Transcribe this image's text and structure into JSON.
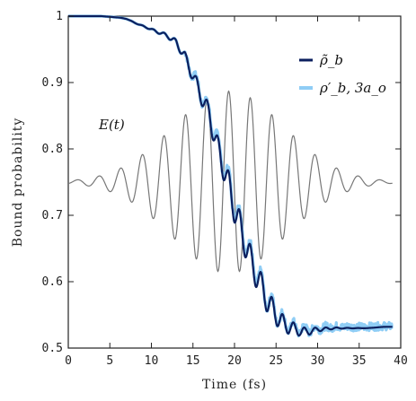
{
  "chart_data": {
    "type": "line",
    "xlabel": "Time (fs)",
    "ylabel": "Bound probability",
    "xlim": [
      0,
      40
    ],
    "ylim": [
      0.5,
      1.0
    ],
    "x_ticks": [
      0,
      5,
      10,
      15,
      20,
      25,
      30,
      35,
      40
    ],
    "y_ticks": [
      0.5,
      0.6,
      0.7,
      0.8,
      0.9,
      1.0
    ],
    "x_tick_labels": [
      "0",
      "5",
      "10",
      "15",
      "20",
      "25",
      "30",
      "35",
      "40"
    ],
    "y_tick_labels": [
      "0.5",
      "0.6",
      "0.7",
      "0.8",
      "0.9",
      "1"
    ],
    "legend_position": "top-right",
    "annotation": "E(t)",
    "series": [
      {
        "name": "ρ̃_b",
        "color": "#0b1f5e",
        "x": [
          0,
          2,
          4,
          5,
          6,
          7,
          8,
          9,
          10,
          11,
          12,
          13,
          14,
          15,
          16,
          17,
          18,
          19,
          20,
          21,
          22,
          23,
          24,
          25,
          26,
          27,
          28,
          29,
          30,
          32,
          34,
          36,
          38,
          39
        ],
        "y": [
          1.0,
          1.0,
          1.0,
          0.999,
          0.998,
          0.996,
          0.99,
          0.985,
          0.98,
          0.975,
          0.97,
          0.96,
          0.94,
          0.91,
          0.88,
          0.85,
          0.8,
          0.76,
          0.71,
          0.67,
          0.63,
          0.6,
          0.57,
          0.55,
          0.535,
          0.53,
          0.525,
          0.525,
          0.528,
          0.53,
          0.53,
          0.53,
          0.532,
          0.532
        ]
      },
      {
        "name": "ρ′_b, 3a_o",
        "color": "#8fcdf5",
        "x": [
          0,
          2,
          4,
          5,
          6,
          7,
          8,
          9,
          10,
          11,
          12,
          13,
          14,
          15,
          16,
          17,
          18,
          19,
          20,
          21,
          22,
          23,
          24,
          25,
          26,
          27,
          28,
          29,
          30,
          32,
          34,
          36,
          38,
          39
        ],
        "y": [
          1.0,
          1.0,
          1.0,
          0.999,
          0.998,
          0.996,
          0.99,
          0.985,
          0.98,
          0.975,
          0.97,
          0.96,
          0.94,
          0.912,
          0.882,
          0.853,
          0.805,
          0.765,
          0.715,
          0.675,
          0.635,
          0.603,
          0.573,
          0.553,
          0.538,
          0.532,
          0.528,
          0.528,
          0.53,
          0.532,
          0.532,
          0.532,
          0.533,
          0.533
        ]
      },
      {
        "name": "E(t)",
        "color": "#777777",
        "offset": 0.75,
        "amplitude": 0.137,
        "center": 19.3,
        "width": 9.5,
        "period": 2.6
      }
    ]
  }
}
